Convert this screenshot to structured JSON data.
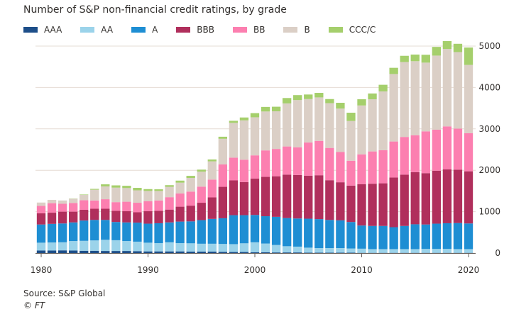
{
  "colors": {
    "AAA": "#1d4e89",
    "AA": "#9bd3ea",
    "A": "#1e8ed3",
    "BBB": "#b02f5c",
    "BB": "#fc7fb0",
    "B": "#dbcfc6",
    "CCC/C": "#a5cf6c"
  },
  "chart_data": {
    "type": "bar",
    "stacked": true,
    "title": "Number of S&P non-financial credit ratings, by grade",
    "xlabel": "",
    "ylabel": "",
    "ylim": [
      0,
      5000
    ],
    "yticks": [
      0,
      1000,
      2000,
      3000,
      4000,
      5000
    ],
    "yticks_labels": [
      "0",
      "1000",
      "2000",
      "3000",
      "4000",
      "5000"
    ],
    "xticks": [
      1980,
      1990,
      2000,
      2010,
      2020
    ],
    "xticks_labels": [
      "1980",
      "1990",
      "2000",
      "2010",
      "2020"
    ],
    "grid": "horizontal",
    "legend_position": "top",
    "categories": [
      1980,
      1981,
      1982,
      1983,
      1984,
      1985,
      1986,
      1987,
      1988,
      1989,
      1990,
      1991,
      1992,
      1993,
      1994,
      1995,
      1996,
      1997,
      1998,
      1999,
      2000,
      2001,
      2002,
      2003,
      2004,
      2005,
      2006,
      2007,
      2008,
      2009,
      2010,
      2011,
      2012,
      2013,
      2014,
      2015,
      2016,
      2017,
      2018,
      2019,
      2020
    ],
    "series": [
      {
        "name": "AAA",
        "values": [
          60,
          60,
          65,
          60,
          55,
          55,
          50,
          50,
          50,
          45,
          40,
          40,
          40,
          40,
          35,
          35,
          35,
          30,
          25,
          25,
          20,
          20,
          15,
          15,
          15,
          10,
          10,
          10,
          10,
          10,
          5,
          5,
          5,
          5,
          5,
          5,
          5,
          5,
          5,
          5,
          5
        ]
      },
      {
        "name": "AA",
        "values": [
          190,
          195,
          195,
          230,
          240,
          250,
          270,
          260,
          240,
          230,
          210,
          200,
          220,
          200,
          200,
          190,
          190,
          190,
          190,
          210,
          240,
          210,
          180,
          150,
          140,
          120,
          110,
          110,
          110,
          100,
          100,
          90,
          90,
          90,
          90,
          90,
          95,
          95,
          95,
          90,
          90
        ]
      },
      {
        "name": "A",
        "values": [
          440,
          450,
          455,
          450,
          490,
          495,
          480,
          440,
          450,
          460,
          460,
          480,
          480,
          520,
          530,
          570,
          600,
          620,
          700,
          680,
          660,
          660,
          680,
          680,
          680,
          700,
          700,
          680,
          670,
          640,
          560,
          560,
          560,
          530,
          560,
          600,
          590,
          610,
          620,
          630,
          620
        ]
      },
      {
        "name": "BBB",
        "values": [
          270,
          270,
          285,
          260,
          260,
          270,
          270,
          270,
          270,
          250,
          300,
          300,
          310,
          360,
          380,
          420,
          520,
          760,
          840,
          800,
          880,
          950,
          980,
          1050,
          1050,
          1040,
          1060,
          960,
          920,
          880,
          1000,
          1020,
          1030,
          1200,
          1240,
          1260,
          1240,
          1280,
          1300,
          1290,
          1260
        ]
      },
      {
        "name": "BB",
        "values": [
          180,
          230,
          190,
          210,
          230,
          200,
          230,
          210,
          230,
          230,
          240,
          250,
          300,
          320,
          340,
          390,
          430,
          540,
          550,
          540,
          560,
          640,
          660,
          680,
          670,
          800,
          830,
          780,
          730,
          600,
          720,
          780,
          800,
          870,
          910,
          890,
          1010,
          990,
          1040,
          990,
          920
        ]
      },
      {
        "name": "B",
        "values": [
          80,
          80,
          80,
          100,
          130,
          260,
          310,
          350,
          330,
          300,
          250,
          230,
          250,
          260,
          330,
          360,
          440,
          620,
          840,
          950,
          920,
          940,
          910,
          1040,
          1140,
          1050,
          1050,
          1080,
          1050,
          960,
          1180,
          1260,
          1420,
          1630,
          1810,
          1790,
          1660,
          1790,
          1870,
          1850,
          1650
        ]
      },
      {
        "name": "CCC/C",
        "values": [
          0,
          0,
          0,
          5,
          10,
          20,
          50,
          55,
          55,
          60,
          45,
          40,
          40,
          50,
          50,
          50,
          45,
          50,
          50,
          70,
          100,
          110,
          110,
          130,
          120,
          110,
          110,
          100,
          140,
          200,
          150,
          140,
          160,
          150,
          150,
          160,
          190,
          210,
          190,
          200,
          420
        ]
      }
    ]
  },
  "source_text": "Source: S&P Global",
  "copyright_text": "© FT"
}
